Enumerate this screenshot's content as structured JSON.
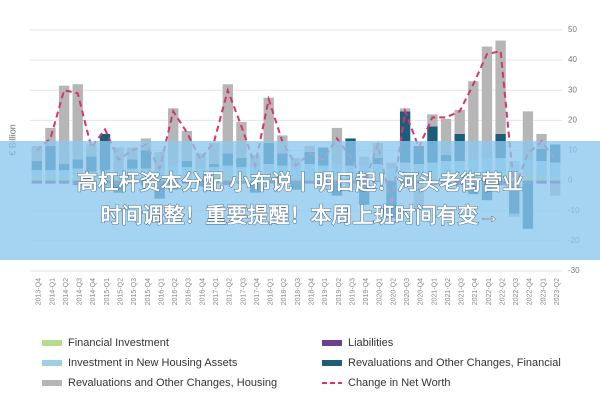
{
  "chart_data": {
    "type": "bar",
    "stacked": true,
    "y_label": "€ Billion",
    "grid": true,
    "y_axis_side": "right",
    "categories": [
      "2013-Q4",
      "2014-Q1",
      "2014-Q2",
      "2014-Q3",
      "2014-Q4",
      "2015-Q1",
      "2015-Q2",
      "2015-Q3",
      "2015-Q4",
      "2016-Q1",
      "2016-Q2",
      "2016-Q3",
      "2016-Q4",
      "2017-Q1",
      "2017-Q2",
      "2017-Q3",
      "2017-Q4",
      "2018-Q1",
      "2018-Q2",
      "2018-Q3",
      "2018-Q4",
      "2019-Q1",
      "2019-Q2",
      "2019-Q3",
      "2019-Q4",
      "2020-Q1",
      "2020-Q2",
      "2020-Q3",
      "2020-Q4",
      "2021-Q1",
      "2021-Q2",
      "2021-Q3",
      "2021-Q4",
      "2022-Q1",
      "2022-Q2",
      "2022-Q3",
      "2022-Q4",
      "2023-Q1",
      "2023-Q2"
    ],
    "series": [
      {
        "name": "Financial Investment",
        "color": "#b9db8e",
        "values": [
          1.5,
          1.5,
          1.5,
          2,
          1,
          1.5,
          1,
          1.5,
          1.5,
          1,
          2,
          1.5,
          1,
          1.5,
          2,
          1.5,
          1,
          2,
          1.5,
          1,
          1.5,
          1,
          1.5,
          1,
          1,
          1.5,
          1,
          2,
          1.5,
          2,
          2,
          2,
          2.5,
          2.5,
          2.5,
          1.5,
          2,
          1.5,
          1
        ]
      },
      {
        "name": "Liabilities",
        "color": "#6e3f8c",
        "values": [
          -1,
          -1,
          -1,
          -1.5,
          -1,
          -1,
          -1,
          -1,
          -1.5,
          -1,
          -1,
          -1,
          -1,
          -1,
          -1.5,
          -1,
          -1,
          -1,
          -1,
          -1,
          -1,
          -1,
          -1,
          -1,
          -1,
          -0.5,
          -0.5,
          -1,
          -1,
          -1.5,
          -1.5,
          -1.5,
          -1.5,
          -1.5,
          -1.5,
          -1,
          -1,
          -1,
          -1
        ]
      },
      {
        "name": "Investment in New Housing Assets",
        "color": "#9fd0e2",
        "values": [
          2,
          2,
          2,
          2,
          2,
          2,
          2,
          2.5,
          2.5,
          2.5,
          3,
          3,
          3,
          3,
          3,
          3,
          3.5,
          3.5,
          3.5,
          3.5,
          4,
          4,
          4,
          4,
          4,
          4,
          3,
          4,
          4,
          4,
          4.5,
          4.5,
          4.5,
          5,
          5,
          5,
          5,
          5,
          5
        ]
      },
      {
        "name": "Revaluations and Other Changes, Financial",
        "color": "#1d5d7a",
        "values": [
          3,
          8,
          2,
          3,
          5,
          12,
          -3,
          3,
          6,
          -5,
          -2,
          2,
          -1,
          1,
          4,
          3,
          -3,
          7,
          4,
          -2,
          4,
          6,
          -4,
          9,
          -7,
          2,
          -12,
          17,
          6,
          12,
          2,
          9,
          -3,
          -5,
          8,
          -10,
          -15,
          4,
          6
        ]
      },
      {
        "name": "Revaluations and Other Changes, Housing",
        "color": "#b6b6b6",
        "values": [
          5,
          6,
          26,
          25,
          4,
          -1,
          8,
          4,
          4,
          6,
          19,
          10,
          5,
          7,
          23,
          12,
          4,
          15,
          6,
          3,
          2,
          -2,
          12,
          -2,
          3,
          5,
          2,
          1,
          -8,
          4,
          12,
          8,
          26,
          37,
          31,
          -1,
          16,
          5,
          -4
        ]
      },
      {
        "name": "Change in Net Worth",
        "color": "#d6336f",
        "type": "line",
        "style": "dashed",
        "values": [
          10,
          14,
          30,
          29,
          11,
          17,
          7,
          10,
          12,
          4,
          23,
          16,
          7,
          13,
          30,
          18,
          5,
          27,
          13,
          5,
          9,
          7,
          14,
          8,
          -1,
          12,
          -8,
          23,
          11,
          21,
          21,
          23,
          32,
          42,
          43,
          -3,
          9,
          13,
          7
        ]
      }
    ],
    "ylim": [
      -30,
      50
    ],
    "yticks": [
      50,
      40,
      30,
      20,
      10,
      0,
      -10,
      -20,
      -30
    ]
  },
  "overlay": {
    "lines": [
      "高杠杆资本分配 小布说丨明日起！河头老街营业",
      "时间调整！重要提醒！本周上班时间有变→"
    ]
  }
}
